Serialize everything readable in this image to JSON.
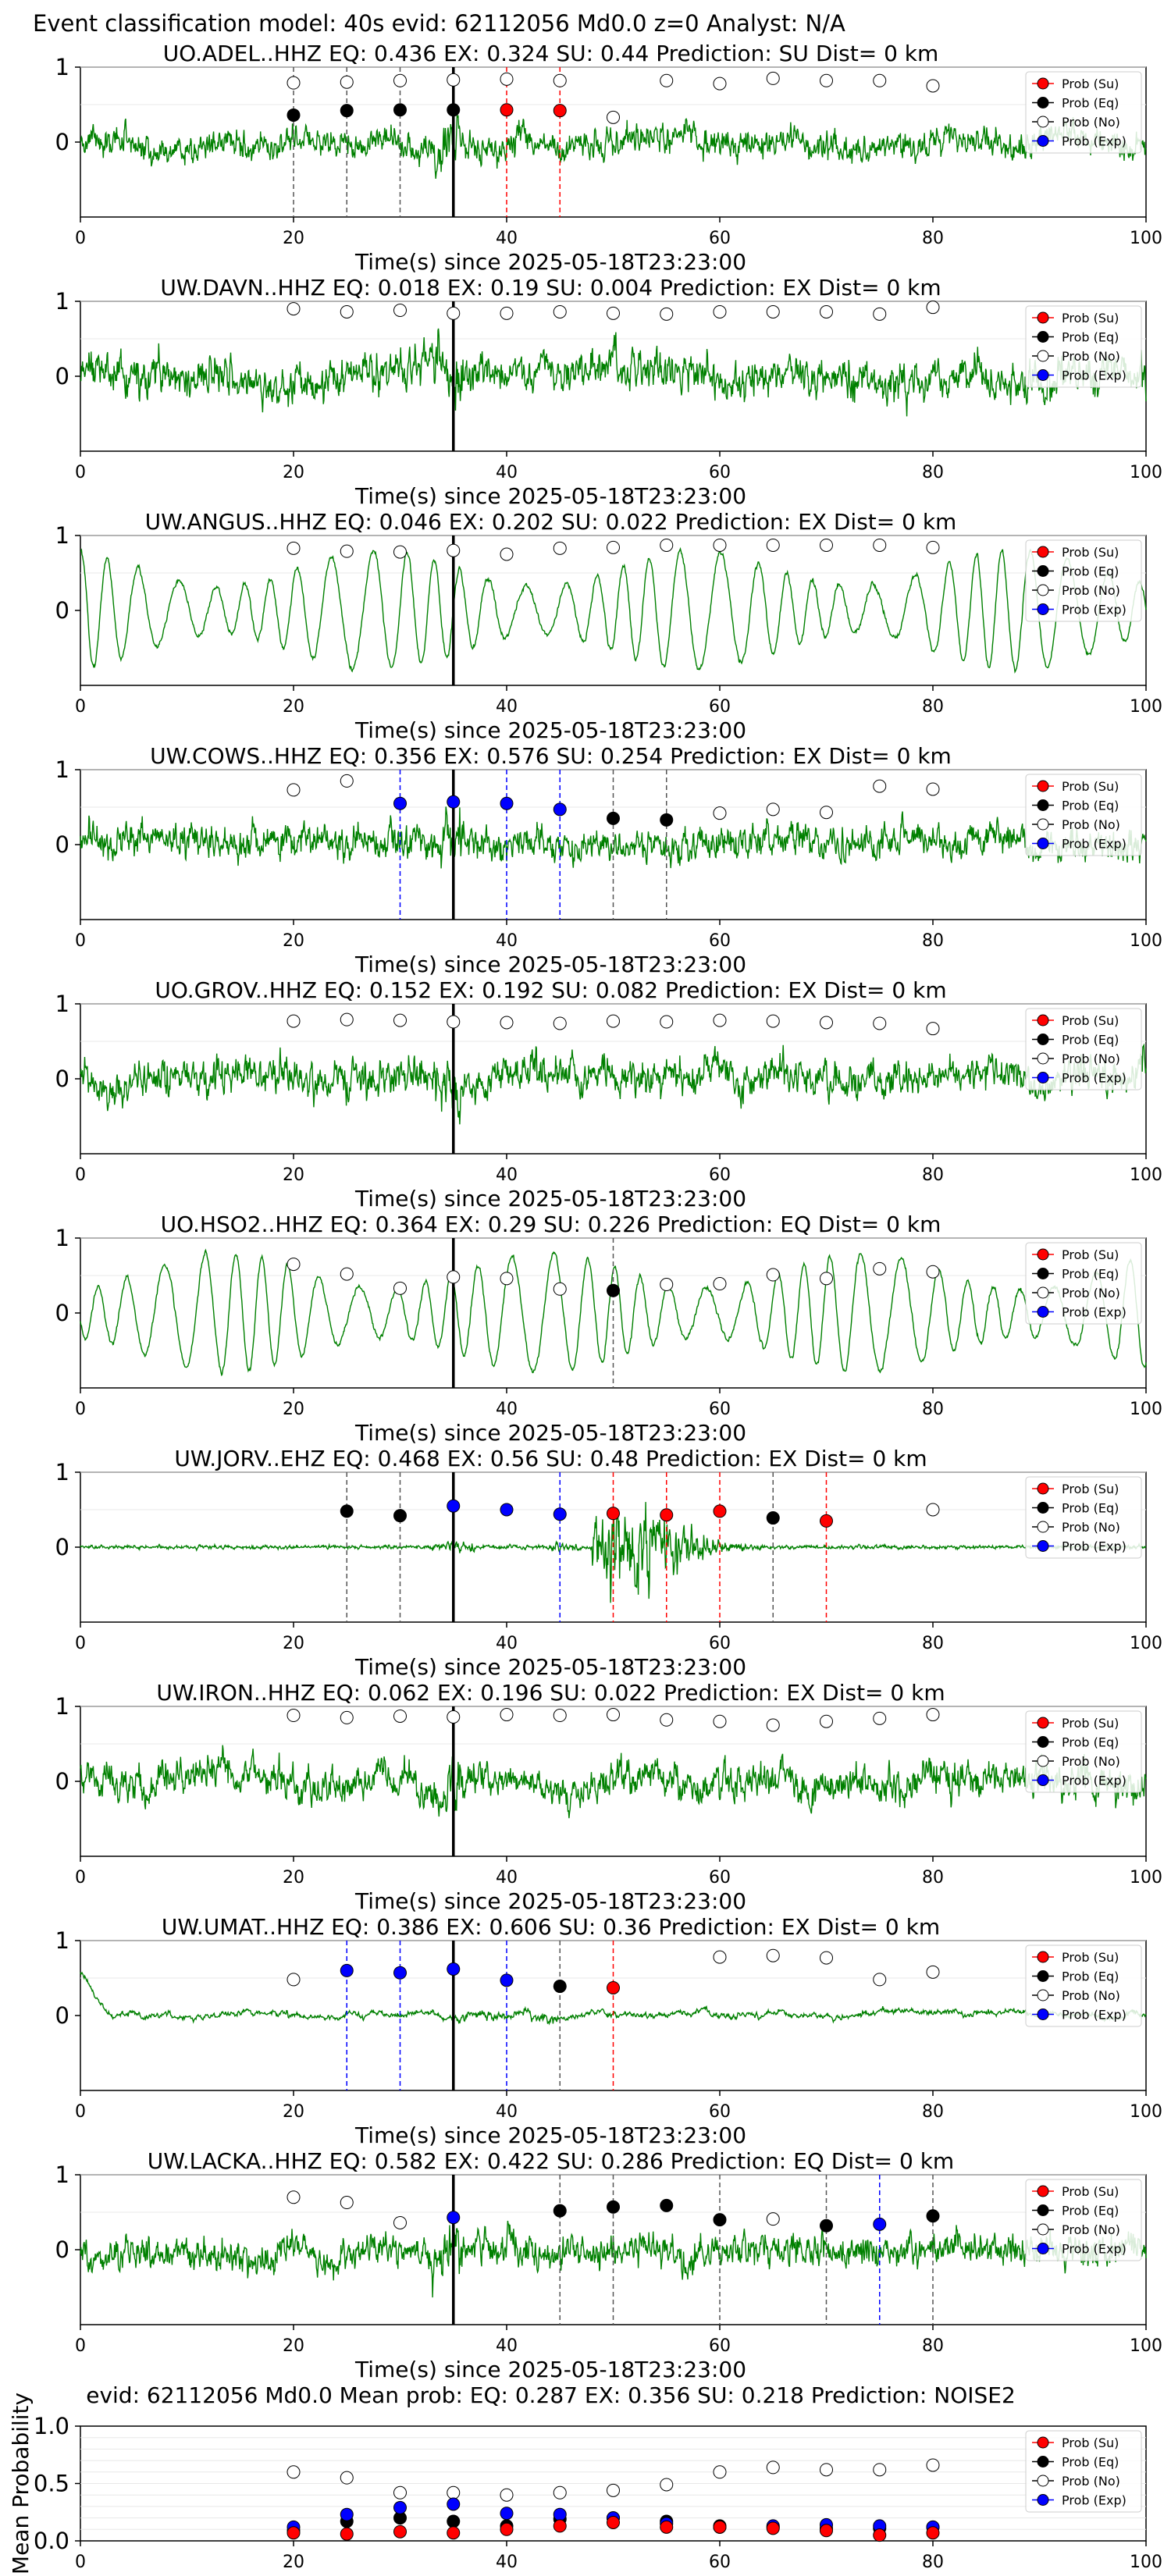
{
  "figure_title": "Event classification model: 40s evid: 62112056 Md0.0 z=0 Analyst: N/A",
  "legend_labels": [
    "Prob (Su)",
    "Prob (Eq)",
    "Prob (No)",
    "Prob (Exp)"
  ],
  "colors": {
    "su": "#ff0000",
    "eq": "#000000",
    "no": "#ffffff",
    "exp": "#0000ff",
    "trace": "#008000",
    "su_line": "#ff0000",
    "eq_line": "#555555",
    "exp_line": "#0000ff"
  },
  "chart_data": [
    {
      "type": "line",
      "title": "UO.ADEL..HHZ   EQ: 0.436  EX: 0.324  SU: 0.44   Prediction: SU    Dist= 0 km",
      "xlabel": "Time(s) since 2025-05-18T23:23:00",
      "ylabel": "",
      "xlim": [
        0,
        100
      ],
      "ylim": [
        -1,
        1
      ],
      "x_ticks": [
        0,
        20,
        40,
        60,
        80,
        100
      ],
      "y_ticks": [
        0,
        1
      ],
      "trace_style": "noise",
      "trace_amp": 0.45,
      "noise": [
        [
          20,
          0.79
        ],
        [
          25,
          0.8
        ],
        [
          30,
          0.82
        ],
        [
          35,
          0.83
        ],
        [
          40,
          0.84
        ],
        [
          45,
          0.82
        ],
        [
          50,
          0.33
        ],
        [
          55,
          0.82
        ],
        [
          60,
          0.78
        ],
        [
          65,
          0.85
        ],
        [
          70,
          0.82
        ],
        [
          75,
          0.82
        ],
        [
          80,
          0.75
        ]
      ],
      "eq": [
        [
          20,
          0.36
        ],
        [
          25,
          0.42
        ],
        [
          30,
          0.43
        ],
        [
          35,
          0.43
        ]
      ],
      "su": [
        [
          40,
          0.43
        ],
        [
          45,
          0.42
        ]
      ],
      "exp": [],
      "eq_lines": [
        20,
        25,
        30,
        35
      ],
      "su_lines": [
        40,
        45
      ],
      "exp_lines": [],
      "pick": 35
    },
    {
      "type": "line",
      "title": "UW.DAVN..HHZ   EQ: 0.018  EX: 0.19  SU: 0.004   Prediction: EX    Dist= 0 km",
      "xlabel": "Time(s) since 2025-05-18T23:23:00",
      "ylabel": "",
      "xlim": [
        0,
        100
      ],
      "ylim": [
        -1,
        1
      ],
      "x_ticks": [
        0,
        20,
        40,
        60,
        80,
        100
      ],
      "y_ticks": [
        0,
        1
      ],
      "trace_style": "noise",
      "trace_amp": 0.6,
      "noise": [
        [
          20,
          0.9
        ],
        [
          25,
          0.86
        ],
        [
          30,
          0.88
        ],
        [
          35,
          0.84
        ],
        [
          40,
          0.84
        ],
        [
          45,
          0.86
        ],
        [
          50,
          0.84
        ],
        [
          55,
          0.83
        ],
        [
          60,
          0.86
        ],
        [
          65,
          0.86
        ],
        [
          70,
          0.86
        ],
        [
          75,
          0.83
        ],
        [
          80,
          0.92
        ]
      ],
      "eq": [],
      "su": [],
      "exp": [],
      "eq_lines": [],
      "su_lines": [],
      "exp_lines": [],
      "pick": 35
    },
    {
      "type": "line",
      "title": "UW.ANGUS..HHZ   EQ: 0.046  EX: 0.202  SU: 0.022   Prediction: EX    Dist= 0 km",
      "xlabel": "Time(s) since 2025-05-18T23:23:00",
      "ylabel": "",
      "xlim": [
        0,
        100
      ],
      "ylim": [
        -1,
        1
      ],
      "x_ticks": [
        0,
        20,
        40,
        60,
        80,
        100
      ],
      "y_ticks": [
        0,
        1
      ],
      "trace_style": "wave",
      "trace_amp": 0.8,
      "noise": [
        [
          20,
          0.83
        ],
        [
          25,
          0.79
        ],
        [
          30,
          0.78
        ],
        [
          35,
          0.8
        ],
        [
          40,
          0.75
        ],
        [
          45,
          0.83
        ],
        [
          50,
          0.84
        ],
        [
          55,
          0.87
        ],
        [
          60,
          0.87
        ],
        [
          65,
          0.87
        ],
        [
          70,
          0.87
        ],
        [
          75,
          0.87
        ],
        [
          80,
          0.84
        ]
      ],
      "eq": [],
      "su": [],
      "exp": [],
      "eq_lines": [],
      "su_lines": [],
      "exp_lines": [],
      "pick": 35
    },
    {
      "type": "line",
      "title": "UW.COWS..HHZ   EQ: 0.356  EX: 0.576  SU: 0.254   Prediction: EX    Dist= 0 km",
      "xlabel": "Time(s) since 2025-05-18T23:23:00",
      "ylabel": "",
      "xlim": [
        0,
        100
      ],
      "ylim": [
        -1,
        1
      ],
      "x_ticks": [
        0,
        20,
        40,
        60,
        80,
        100
      ],
      "y_ticks": [
        0,
        1
      ],
      "trace_style": "noise",
      "trace_amp": 0.5,
      "noise": [
        [
          20,
          0.73
        ],
        [
          25,
          0.85
        ],
        [
          60,
          0.42
        ],
        [
          65,
          0.47
        ],
        [
          70,
          0.43
        ],
        [
          75,
          0.78
        ],
        [
          80,
          0.74
        ]
      ],
      "eq": [
        [
          50,
          0.35
        ],
        [
          55,
          0.33
        ]
      ],
      "su": [],
      "exp": [
        [
          30,
          0.55
        ],
        [
          35,
          0.57
        ],
        [
          40,
          0.55
        ],
        [
          45,
          0.47
        ]
      ],
      "eq_lines": [
        50,
        55
      ],
      "su_lines": [],
      "exp_lines": [
        30,
        40,
        45
      ],
      "pick": 35
    },
    {
      "type": "line",
      "title": "UO.GROV..HHZ   EQ: 0.152  EX: 0.192  SU: 0.082   Prediction: EX    Dist= 0 km",
      "xlabel": "Time(s) since 2025-05-18T23:23:00",
      "ylabel": "",
      "xlim": [
        0,
        100
      ],
      "ylim": [
        -1,
        1
      ],
      "x_ticks": [
        0,
        20,
        40,
        60,
        80,
        100
      ],
      "y_ticks": [
        0,
        1
      ],
      "trace_style": "noise",
      "trace_amp": 0.55,
      "noise": [
        [
          20,
          0.77
        ],
        [
          25,
          0.79
        ],
        [
          30,
          0.78
        ],
        [
          35,
          0.76
        ],
        [
          40,
          0.75
        ],
        [
          45,
          0.74
        ],
        [
          50,
          0.77
        ],
        [
          55,
          0.76
        ],
        [
          60,
          0.78
        ],
        [
          65,
          0.77
        ],
        [
          70,
          0.75
        ],
        [
          75,
          0.74
        ],
        [
          80,
          0.67
        ]
      ],
      "eq": [],
      "su": [],
      "exp": [],
      "eq_lines": [],
      "su_lines": [],
      "exp_lines": [],
      "pick": 35
    },
    {
      "type": "line",
      "title": "UO.HSO2..HHZ   EQ: 0.364  EX: 0.29  SU: 0.226   Prediction: EQ    Dist= 0 km",
      "xlabel": "Time(s) since 2025-05-18T23:23:00",
      "ylabel": "",
      "xlim": [
        0,
        100
      ],
      "ylim": [
        -1,
        1
      ],
      "x_ticks": [
        0,
        20,
        40,
        60,
        80,
        100
      ],
      "y_ticks": [
        0,
        1
      ],
      "trace_style": "wave",
      "trace_amp": 0.8,
      "noise": [
        [
          20,
          0.65
        ],
        [
          25,
          0.52
        ],
        [
          30,
          0.33
        ],
        [
          35,
          0.48
        ],
        [
          40,
          0.46
        ],
        [
          45,
          0.32
        ],
        [
          55,
          0.38
        ],
        [
          60,
          0.39
        ],
        [
          65,
          0.51
        ],
        [
          70,
          0.46
        ],
        [
          75,
          0.59
        ],
        [
          80,
          0.55
        ]
      ],
      "eq": [
        [
          50,
          0.3
        ]
      ],
      "su": [],
      "exp": [],
      "eq_lines": [
        50
      ],
      "su_lines": [],
      "exp_lines": [],
      "pick": 35
    },
    {
      "type": "line",
      "title": "UW.JORV..EHZ   EQ: 0.468  EX: 0.56  SU: 0.48   Prediction: EX    Dist= 0 km",
      "xlabel": "Time(s) since 2025-05-18T23:23:00",
      "ylabel": "",
      "xlim": [
        0,
        100
      ],
      "ylim": [
        -1,
        1
      ],
      "x_ticks": [
        0,
        20,
        40,
        60,
        80,
        100
      ],
      "y_ticks": [
        0,
        1
      ],
      "trace_style": "event",
      "trace_amp": 0.05,
      "noise": [
        [
          80,
          0.5
        ]
      ],
      "eq": [
        [
          25,
          0.48
        ],
        [
          30,
          0.42
        ],
        [
          65,
          0.39
        ]
      ],
      "su": [
        [
          50,
          0.45
        ],
        [
          55,
          0.43
        ],
        [
          60,
          0.48
        ],
        [
          70,
          0.35
        ]
      ],
      "exp": [
        [
          35,
          0.55
        ],
        [
          40,
          0.5
        ],
        [
          45,
          0.44
        ]
      ],
      "eq_lines": [
        25,
        30,
        65
      ],
      "su_lines": [
        50,
        55,
        60,
        70
      ],
      "exp_lines": [
        45
      ],
      "pick": 35
    },
    {
      "type": "line",
      "title": "UW.IRON..HHZ   EQ: 0.062  EX: 0.196  SU: 0.022   Prediction: EX    Dist= 0 km",
      "xlabel": "Time(s) since 2025-05-18T23:23:00",
      "ylabel": "",
      "xlim": [
        0,
        100
      ],
      "ylim": [
        -1,
        1
      ],
      "x_ticks": [
        0,
        20,
        40,
        60,
        80,
        100
      ],
      "y_ticks": [
        0,
        1
      ],
      "trace_style": "noise",
      "trace_amp": 0.55,
      "noise": [
        [
          20,
          0.88
        ],
        [
          25,
          0.85
        ],
        [
          30,
          0.87
        ],
        [
          35,
          0.86
        ],
        [
          40,
          0.89
        ],
        [
          45,
          0.88
        ],
        [
          50,
          0.89
        ],
        [
          55,
          0.82
        ],
        [
          60,
          0.8
        ],
        [
          65,
          0.75
        ],
        [
          70,
          0.8
        ],
        [
          75,
          0.84
        ],
        [
          80,
          0.89
        ]
      ],
      "eq": [],
      "su": [],
      "exp": [],
      "eq_lines": [],
      "su_lines": [],
      "exp_lines": [],
      "pick": 35
    },
    {
      "type": "line",
      "title": "UW.UMAT..HHZ   EQ: 0.386  EX: 0.606  SU: 0.36   Prediction: EX    Dist= 0 km",
      "xlabel": "Time(s) since 2025-05-18T23:23:00",
      "ylabel": "",
      "xlim": [
        0,
        100
      ],
      "ylim": [
        -1,
        1
      ],
      "x_ticks": [
        0,
        20,
        40,
        60,
        80,
        100
      ],
      "y_ticks": [
        0,
        1
      ],
      "trace_style": "quiet",
      "trace_amp": 0.15,
      "noise": [
        [
          20,
          0.48
        ],
        [
          60,
          0.78
        ],
        [
          65,
          0.8
        ],
        [
          70,
          0.77
        ],
        [
          75,
          0.48
        ],
        [
          80,
          0.58
        ]
      ],
      "eq": [
        [
          45,
          0.39
        ]
      ],
      "su": [
        [
          50,
          0.37
        ]
      ],
      "exp": [
        [
          25,
          0.6
        ],
        [
          30,
          0.57
        ],
        [
          35,
          0.62
        ],
        [
          40,
          0.47
        ]
      ],
      "eq_lines": [
        45
      ],
      "su_lines": [
        50
      ],
      "exp_lines": [
        25,
        30,
        40
      ],
      "pick": 35
    },
    {
      "type": "line",
      "title": "UW.LACKA..HHZ   EQ: 0.582  EX: 0.422  SU: 0.286   Prediction: EQ    Dist= 0 km",
      "xlabel": "Time(s) since 2025-05-18T23:23:00",
      "ylabel": "",
      "xlim": [
        0,
        100
      ],
      "ylim": [
        -1,
        1
      ],
      "x_ticks": [
        0,
        20,
        40,
        60,
        80,
        100
      ],
      "y_ticks": [
        0,
        1
      ],
      "trace_style": "noise",
      "trace_amp": 0.5,
      "noise": [
        [
          20,
          0.7
        ],
        [
          25,
          0.63
        ],
        [
          30,
          0.36
        ],
        [
          65,
          0.41
        ]
      ],
      "eq": [
        [
          45,
          0.52
        ],
        [
          50,
          0.57
        ],
        [
          55,
          0.59
        ],
        [
          60,
          0.4
        ],
        [
          70,
          0.32
        ],
        [
          80,
          0.45
        ]
      ],
      "su": [],
      "exp": [
        [
          35,
          0.43
        ],
        [
          75,
          0.34
        ]
      ],
      "eq_lines": [
        45,
        50,
        60,
        70,
        80
      ],
      "su_lines": [],
      "exp_lines": [
        75
      ],
      "pick": 35
    },
    {
      "type": "scatter",
      "title": "evid: 62112056  Md0.0   Mean prob:   EQ: 0.287  EX: 0.356  SU: 0.218   Prediction: NOISE2",
      "xlabel": "",
      "ylabel": "Mean Probability",
      "xlim": [
        0,
        100
      ],
      "ylim": [
        0,
        1
      ],
      "x_ticks": [
        0,
        20,
        40,
        60,
        80,
        100
      ],
      "y_ticks": [
        "0.0",
        "0.5",
        "1.0"
      ],
      "x": [
        20,
        25,
        30,
        35,
        40,
        45,
        50,
        55,
        60,
        65,
        70,
        75,
        80
      ],
      "series": [
        {
          "name": "Prob (Su)",
          "values": [
            0.07,
            0.06,
            0.08,
            0.07,
            0.1,
            0.13,
            0.16,
            0.12,
            0.12,
            0.11,
            0.09,
            0.05,
            0.07
          ]
        },
        {
          "name": "Prob (Eq)",
          "values": [
            0.09,
            0.17,
            0.2,
            0.17,
            0.13,
            0.19,
            0.2,
            0.17,
            0.13,
            0.12,
            0.11,
            0.11,
            0.12
          ]
        },
        {
          "name": "Prob (No)",
          "values": [
            0.6,
            0.55,
            0.42,
            0.42,
            0.4,
            0.42,
            0.44,
            0.49,
            0.6,
            0.64,
            0.62,
            0.62,
            0.66
          ]
        },
        {
          "name": "Prob (Exp)",
          "values": [
            0.12,
            0.23,
            0.29,
            0.32,
            0.24,
            0.23,
            0.2,
            0.15,
            0.12,
            0.13,
            0.14,
            0.13,
            0.12
          ]
        }
      ]
    }
  ]
}
